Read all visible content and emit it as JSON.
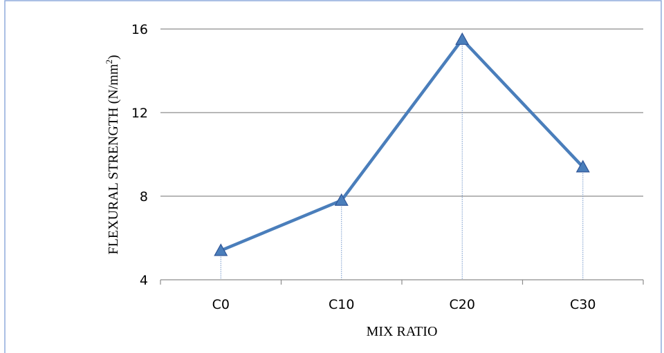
{
  "chart_data": {
    "type": "line",
    "categories": [
      "C0",
      "C10",
      "C20",
      "C30"
    ],
    "series": [
      {
        "values": [
          5.4,
          7.8,
          15.5,
          9.4
        ]
      }
    ],
    "title": "",
    "xlabel": "MIX RATIO",
    "ylabel": "FLEXURAL STRENGTH (N/mm",
    "ylabel_superscript": "2",
    "ylabel_close": ")",
    "ylim": [
      4,
      16
    ],
    "yticks": [
      "4",
      "8",
      "12",
      "16"
    ],
    "grid": "horizontal",
    "drop_lines": true,
    "marker": "triangle",
    "colors": {
      "line": "#4a7ebb",
      "marker": "#4a7ebb",
      "grid": "#8c8c8c",
      "frame": "#8eaadb"
    }
  }
}
